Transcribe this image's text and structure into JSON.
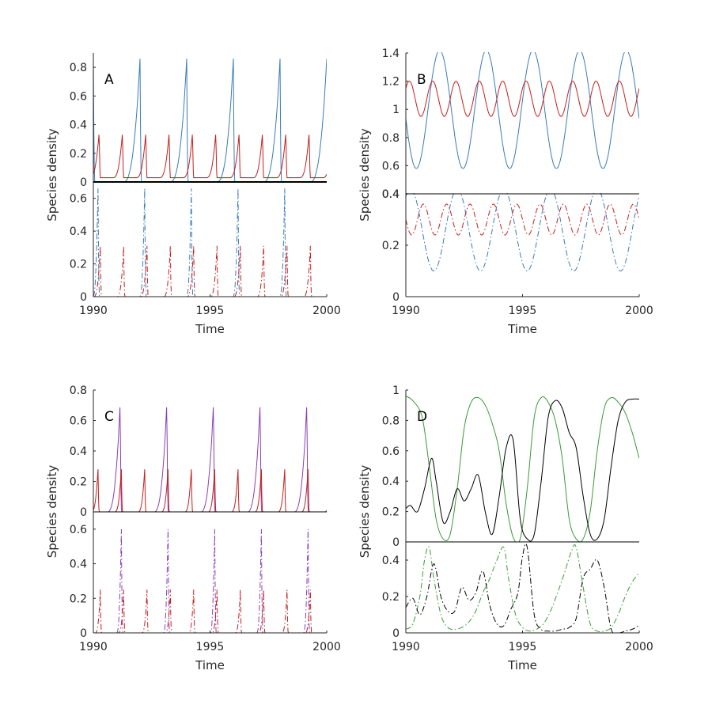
{
  "figure": {
    "colors": {
      "blue": "#3a7bb8",
      "red": "#c41e1e",
      "purple": "#8a3fb0",
      "green": "#3a9a36",
      "black": "#000000",
      "axis": "#262626"
    }
  },
  "chart_data": [
    {
      "panel": "A",
      "type": "line",
      "xlabel": "Time",
      "ylabel": "Species density",
      "x_ticks": [
        "1990",
        "1995",
        "2000"
      ],
      "xlim": [
        1990,
        2000
      ],
      "top": {
        "ylim": [
          0,
          0.9
        ],
        "ticks": [
          0,
          0.2,
          0.4,
          0.6,
          0.8
        ],
        "tick_labels": [
          "0",
          "0.2",
          "0.4",
          "0.6",
          "0.8"
        ],
        "series": [
          {
            "name": "blue solid",
            "color": "blue",
            "dash": "solid",
            "shape": "ramp",
            "peak": 0.86,
            "base": 0.0,
            "first_peak": 1990.0,
            "period": 2.0,
            "rise_width": 0.72
          },
          {
            "name": "red solid",
            "color": "red",
            "dash": "solid",
            "shape": "ramp",
            "peak": 0.35,
            "base": 0.03,
            "first_peak": 1990.25,
            "period": 1.0,
            "rise_width": 0.4
          }
        ]
      },
      "bottom": {
        "ylim": [
          0,
          0.7
        ],
        "ticks": [
          0,
          0.2,
          0.4,
          0.6
        ],
        "tick_labels": [
          "0",
          "0.2",
          "0.4",
          "0.6"
        ],
        "series": [
          {
            "name": "blue dash-dot",
            "color": "blue",
            "dash": "dashdot",
            "shape": "ramp",
            "peak": 0.66,
            "base": 0.0,
            "first_peak": 1990.2,
            "period": 2.0,
            "rise_width": 0.22
          },
          {
            "name": "red dash-dot",
            "color": "red",
            "dash": "dashdot",
            "shape": "ramp",
            "peak": 0.31,
            "base": 0.0,
            "first_peak": 1990.3,
            "period": 1.0,
            "rise_width": 0.28
          }
        ]
      }
    },
    {
      "panel": "B",
      "type": "line",
      "xlabel": "Time",
      "ylabel": "Species density",
      "x_ticks": [
        "1990",
        "1995",
        "2000"
      ],
      "xlim": [
        1990,
        2000
      ],
      "top": {
        "ylim": [
          0.4,
          1.4
        ],
        "ticks": [
          0.4,
          0.6,
          0.8,
          1.0,
          1.2,
          1.4
        ],
        "tick_labels": [
          "0.4",
          "0.6",
          "0.8",
          "1",
          "1.2",
          "1.4"
        ],
        "series": [
          {
            "name": "blue solid",
            "color": "blue",
            "dash": "solid",
            "shape": "sine",
            "mean": 1.0,
            "amp": 0.42,
            "first_peak": 1991.45,
            "period": 2.0
          },
          {
            "name": "red solid",
            "color": "red",
            "dash": "solid",
            "shape": "sine",
            "mean": 1.075,
            "amp": 0.125,
            "first_peak": 1990.15,
            "period": 1.0
          }
        ]
      },
      "bottom": {
        "ylim": [
          0,
          0.4
        ],
        "ticks": [
          0,
          0.2,
          0.4
        ],
        "tick_labels": [
          "0",
          "0.2",
          "0.4"
        ],
        "series": [
          {
            "name": "blue dash-dot",
            "color": "blue",
            "dash": "dashdot",
            "shape": "sine",
            "mean": 0.26,
            "amp": 0.16,
            "first_peak": 1990.2,
            "period": 2.0
          },
          {
            "name": "red dash-dot",
            "color": "red",
            "dash": "dashdot",
            "shape": "sine",
            "mean": 0.3,
            "amp": 0.06,
            "first_peak": 1990.75,
            "period": 1.0
          }
        ]
      }
    },
    {
      "panel": "C",
      "type": "line",
      "xlabel": "Time",
      "ylabel": "Species density",
      "x_ticks": [
        "1990",
        "1995",
        "2000"
      ],
      "xlim": [
        1990,
        2000
      ],
      "top": {
        "ylim": [
          0,
          0.8
        ],
        "ticks": [
          0,
          0.2,
          0.4,
          0.6,
          0.8
        ],
        "tick_labels": [
          "0",
          "0.2",
          "0.4",
          "0.6",
          "0.8"
        ],
        "series": [
          {
            "name": "purple solid",
            "color": "purple",
            "dash": "solid",
            "shape": "ramp",
            "peak": 0.72,
            "base": 0.0,
            "first_peak": 1991.15,
            "period": 2.0,
            "rise_width": 0.55
          },
          {
            "name": "red solid",
            "color": "red",
            "dash": "solid",
            "shape": "ramp",
            "peak": 0.28,
            "base": 0.0,
            "first_peak": 1990.2,
            "period": 1.0,
            "rise_width": 0.28
          }
        ]
      },
      "bottom": {
        "ylim": [
          0,
          0.7
        ],
        "ticks": [
          0,
          0.2,
          0.4,
          0.6
        ],
        "tick_labels": [
          "0",
          "0.2",
          "0.4",
          "0.6"
        ],
        "series": [
          {
            "name": "purple dash-dot",
            "color": "purple",
            "dash": "dashdot",
            "shape": "ramp",
            "peak": 0.6,
            "base": 0.0,
            "first_peak": 1991.2,
            "period": 2.0,
            "rise_width": 0.2
          },
          {
            "name": "red dash-dot",
            "color": "red",
            "dash": "dashdot",
            "shape": "ramp",
            "peak": 0.25,
            "base": 0.0,
            "first_peak": 1990.3,
            "period": 1.0,
            "rise_width": 0.22
          }
        ]
      }
    },
    {
      "panel": "D",
      "type": "line",
      "xlabel": "Time",
      "ylabel": "Species density",
      "x_ticks": [
        "1990",
        "1995",
        "2000"
      ],
      "xlim": [
        1990,
        2000
      ],
      "top": {
        "ylim": [
          0,
          1.0
        ],
        "ticks": [
          0,
          0.2,
          0.4,
          0.6,
          0.8,
          1.0
        ],
        "tick_labels": [
          "0",
          "0.2",
          "0.4",
          "0.6",
          "0.8",
          "1"
        ],
        "series": [
          {
            "name": "green solid",
            "color": "green",
            "dash": "solid",
            "shape": "points",
            "x": [
              1990,
              1990.3,
              1990.7,
              1991.0,
              1991.3,
              1991.6,
              1991.9,
              1992.2,
              1992.5,
              1992.8,
              1993.1,
              1993.4,
              1993.7,
              1994.0,
              1994.3,
              1994.6,
              1994.9,
              1995.2,
              1995.5,
              1995.8,
              1996.1,
              1996.4,
              1996.7,
              1997.0,
              1997.3,
              1997.6,
              1997.9,
              1998.2,
              1998.5,
              1998.8,
              1999.1,
              1999.4,
              1999.7,
              2000
            ],
            "y": [
              0.96,
              0.93,
              0.82,
              0.5,
              0.15,
              0.02,
              0.05,
              0.35,
              0.75,
              0.92,
              0.95,
              0.9,
              0.78,
              0.6,
              0.25,
              0.03,
              0.02,
              0.35,
              0.82,
              0.95,
              0.92,
              0.8,
              0.55,
              0.15,
              0.02,
              0.02,
              0.2,
              0.6,
              0.88,
              0.95,
              0.92,
              0.85,
              0.72,
              0.55
            ]
          },
          {
            "name": "black solid",
            "color": "black",
            "dash": "solid",
            "shape": "points",
            "x": [
              1990,
              1990.2,
              1990.5,
              1990.8,
              1991.1,
              1991.3,
              1991.6,
              1991.9,
              1992.2,
              1992.5,
              1992.8,
              1993.1,
              1993.4,
              1993.7,
              1994.0,
              1994.3,
              1994.6,
              1994.9,
              1995.2,
              1995.5,
              1995.8,
              1996.1,
              1996.4,
              1996.7,
              1997.0,
              1997.3,
              1997.6,
              1997.9,
              1998.2,
              1998.5,
              1998.8,
              1999.1,
              1999.4,
              1999.7,
              2000
            ],
            "y": [
              0.22,
              0.24,
              0.2,
              0.35,
              0.55,
              0.4,
              0.13,
              0.2,
              0.35,
              0.27,
              0.35,
              0.44,
              0.2,
              0.05,
              0.3,
              0.62,
              0.67,
              0.15,
              0.02,
              0.05,
              0.4,
              0.82,
              0.93,
              0.88,
              0.72,
              0.62,
              0.3,
              0.05,
              0.02,
              0.15,
              0.5,
              0.8,
              0.92,
              0.94,
              0.94
            ]
          }
        ]
      },
      "bottom": {
        "ylim": [
          0,
          0.5
        ],
        "ticks": [
          0,
          0.2,
          0.4
        ],
        "tick_labels": [
          "0",
          "0.2",
          "0.4"
        ],
        "series": [
          {
            "name": "green dash-dot",
            "color": "green",
            "dash": "dashdot",
            "shape": "points",
            "x": [
              1990,
              1990.3,
              1990.6,
              1990.8,
              1991.0,
              1991.2,
              1991.5,
              1991.8,
              1992.1,
              1992.4,
              1992.7,
              1993.0,
              1993.3,
              1993.6,
              1993.9,
              1994.2,
              1994.4,
              1994.7,
              1995.0,
              1995.3,
              1995.6,
              1995.9,
              1996.2,
              1996.5,
              1996.8,
              1997.1,
              1997.3,
              1997.6,
              1997.9,
              1998.2,
              1998.5,
              1998.8,
              1999.1,
              1999.4,
              1999.7,
              2000
            ],
            "y": [
              0.02,
              0.05,
              0.2,
              0.4,
              0.47,
              0.3,
              0.1,
              0.03,
              0.02,
              0.03,
              0.06,
              0.12,
              0.22,
              0.3,
              0.4,
              0.47,
              0.3,
              0.1,
              0.03,
              0.01,
              0.02,
              0.05,
              0.12,
              0.22,
              0.33,
              0.45,
              0.47,
              0.25,
              0.05,
              0.01,
              0.01,
              0.03,
              0.1,
              0.2,
              0.28,
              0.33
            ]
          },
          {
            "name": "black dash-dot",
            "color": "black",
            "dash": "dashdot",
            "shape": "points",
            "x": [
              1990,
              1990.3,
              1990.6,
              1990.9,
              1991.2,
              1991.5,
              1991.8,
              1992.1,
              1992.4,
              1992.7,
              1993.0,
              1993.3,
              1993.6,
              1993.9,
              1994.2,
              1994.5,
              1994.8,
              1995.0,
              1995.2,
              1995.5,
              1995.8,
              1996.1,
              1996.4,
              1996.7,
              1997.0,
              1997.3,
              1997.6,
              1997.9,
              1998.2,
              1998.5,
              1998.8,
              1999.1,
              1999.4,
              1999.7,
              2000
            ],
            "y": [
              0.14,
              0.19,
              0.1,
              0.2,
              0.38,
              0.2,
              0.12,
              0.12,
              0.25,
              0.18,
              0.22,
              0.34,
              0.15,
              0.05,
              0.04,
              0.13,
              0.22,
              0.42,
              0.47,
              0.1,
              0.02,
              0.01,
              0.01,
              0.02,
              0.03,
              0.08,
              0.3,
              0.35,
              0.4,
              0.25,
              0.02,
              0.0,
              0.01,
              0.02,
              0.04
            ]
          }
        ]
      }
    }
  ]
}
